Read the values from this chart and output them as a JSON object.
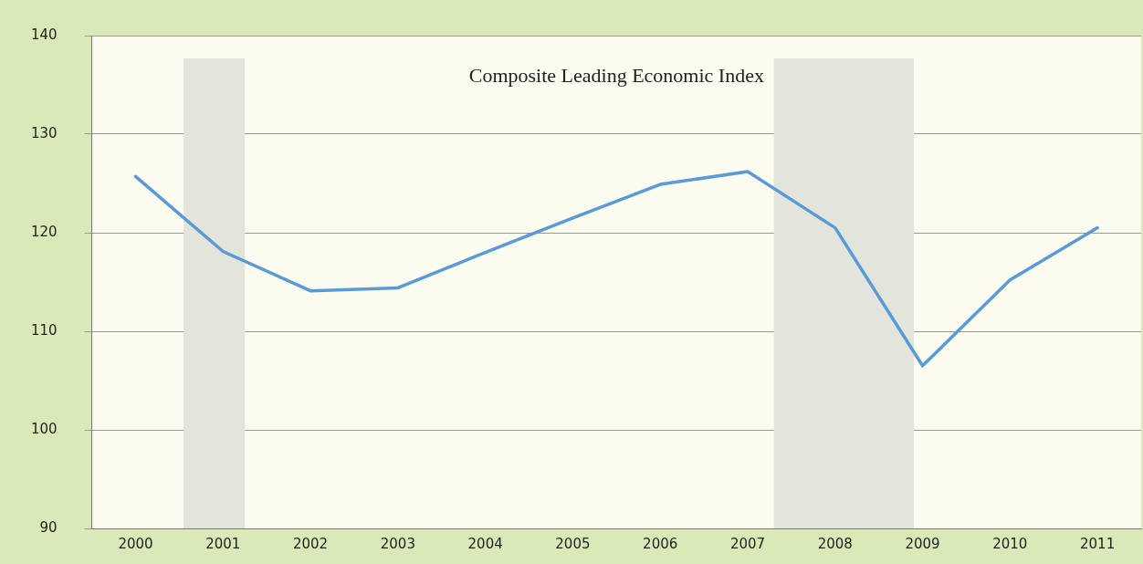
{
  "chart_data": {
    "type": "line",
    "title": "Composite Leading Economic Index",
    "x": [
      2000,
      2001,
      2002,
      2003,
      2004,
      2005,
      2006,
      2007,
      2008,
      2009,
      2010,
      2011
    ],
    "values": [
      125.7,
      118.1,
      114.1,
      114.4,
      118,
      121.5,
      124.9,
      126.2,
      120.5,
      106.5,
      115.2,
      120.5
    ],
    "color": "#5b9bd5",
    "xlim": [
      1999.5,
      2011.5
    ],
    "xticks": [
      2000,
      2001,
      2002,
      2003,
      2004,
      2005,
      2006,
      2007,
      2008,
      2009,
      2010,
      2011
    ],
    "ylim": [
      90,
      140
    ],
    "yticks": [
      90,
      100,
      110,
      120,
      130,
      140
    ],
    "grid": "y",
    "legend": false,
    "marker": "none",
    "line_style": "solid",
    "bands": [
      {
        "axis": "x",
        "from": 2000.55,
        "to": 2001.25,
        "color": "#e3e4dc"
      },
      {
        "axis": "x",
        "from": 2007.3,
        "to": 2008.9,
        "color": "#e3e4dc"
      }
    ]
  }
}
